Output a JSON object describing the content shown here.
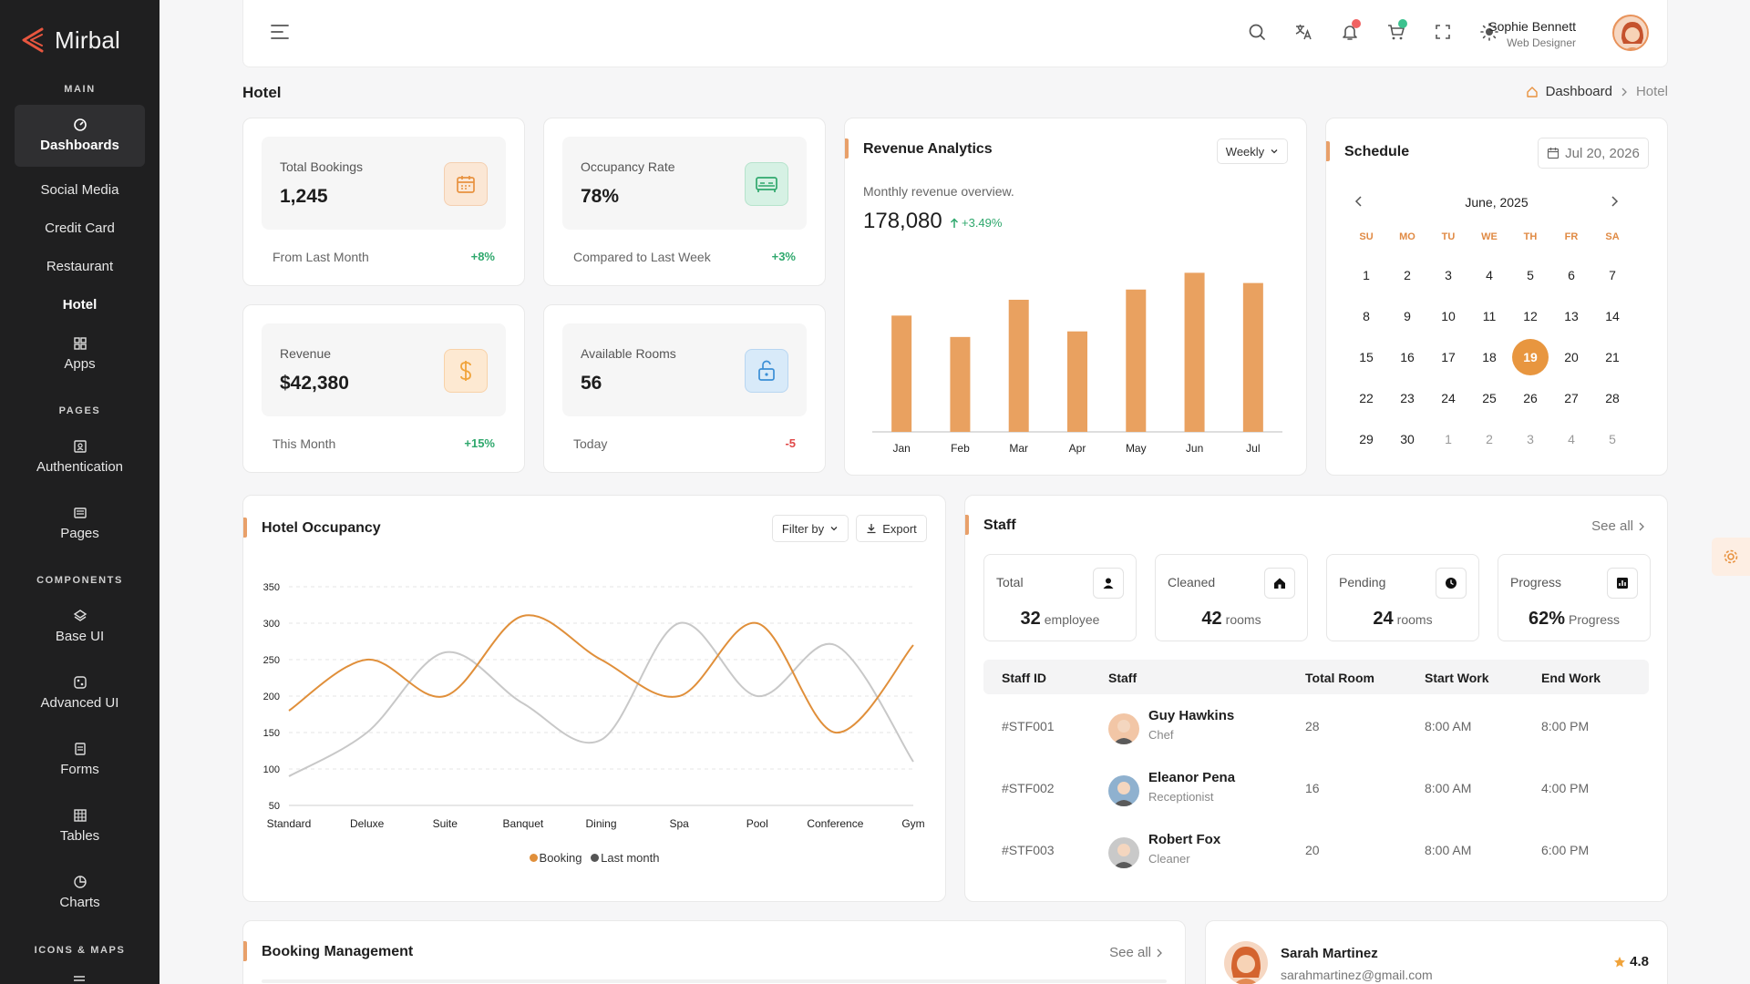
{
  "app": {
    "name": "Mirbal"
  },
  "sidebar": {
    "sections": {
      "main": "MAIN",
      "pages": "PAGES",
      "components": "COMPONENTS",
      "icons_maps": "ICONS & MAPS"
    },
    "items": [
      {
        "label": "Dashboards",
        "icon": "gauge-icon"
      },
      {
        "label": "Social Media"
      },
      {
        "label": "Credit Card"
      },
      {
        "label": "Restaurant"
      },
      {
        "label": "Hotel"
      },
      {
        "label": "Apps",
        "icon": "grid-icon"
      },
      {
        "label": "Authentication",
        "icon": "id-card-icon"
      },
      {
        "label": "Pages",
        "icon": "pages-icon"
      },
      {
        "label": "Base UI",
        "icon": "layers-icon"
      },
      {
        "label": "Advanced UI",
        "icon": "palette-icon"
      },
      {
        "label": "Forms",
        "icon": "form-icon"
      },
      {
        "label": "Tables",
        "icon": "table-icon"
      },
      {
        "label": "Charts",
        "icon": "pie-icon"
      }
    ]
  },
  "header": {
    "user_name": "Sophie Bennett",
    "user_role": "Web Designer",
    "colors": {
      "notif_dot": "#f06262",
      "cart_dot": "#3cc28f"
    }
  },
  "page": {
    "title": "Hotel"
  },
  "breadcrumb": {
    "home": "Dashboard",
    "current": "Hotel"
  },
  "stats": [
    {
      "label": "Total Bookings",
      "value": "1,245",
      "foot": "From Last Month",
      "change": "+8%",
      "icon": "calendar-icon",
      "color": "#e8923f",
      "bg": "#fbe7d5"
    },
    {
      "label": "Occupancy Rate",
      "value": "78%",
      "foot": "Compared to Last Week",
      "change": "+3%",
      "icon": "bed-icon",
      "color": "#2fa86d",
      "bg": "#d6f1e4"
    },
    {
      "label": "Revenue",
      "value": "$42,380",
      "foot": "This Month",
      "change": "+15%",
      "icon": "dollar-icon",
      "color": "#f0a33a",
      "bg": "#fde9d2"
    },
    {
      "label": "Available Rooms",
      "value": "56",
      "foot": "Today",
      "change": "-5",
      "icon": "unlock-icon",
      "color": "#3b8fd6",
      "bg": "#d8eaf9"
    }
  ],
  "revenue": {
    "title": "Revenue Analytics",
    "period": "Weekly",
    "subtitle": "Monthly revenue overview.",
    "total": "178,080",
    "change": "+3.49%"
  },
  "schedule": {
    "title": "Schedule",
    "date_button": "Jul 20, 2026",
    "month_label": "June, 2025",
    "dow": [
      "SU",
      "MO",
      "TU",
      "WE",
      "TH",
      "FR",
      "SA"
    ],
    "weeks": [
      [
        "1",
        "2",
        "3",
        "4",
        "5",
        "6",
        "7"
      ],
      [
        "8",
        "9",
        "10",
        "11",
        "12",
        "13",
        "14"
      ],
      [
        "15",
        "16",
        "17",
        "18",
        "19",
        "20",
        "21"
      ],
      [
        "22",
        "23",
        "24",
        "25",
        "26",
        "27",
        "28"
      ],
      [
        "29",
        "30",
        "1",
        "2",
        "3",
        "4",
        "5"
      ]
    ],
    "selected": "19"
  },
  "occupancy": {
    "title": "Hotel Occupancy",
    "filter": "Filter by",
    "export": "Export",
    "legend": [
      "Booking",
      "Last month"
    ]
  },
  "staff": {
    "title": "Staff",
    "see_all": "See all",
    "summary": [
      {
        "label": "Total",
        "value": "32",
        "unit": "employee",
        "icon": "user-icon"
      },
      {
        "label": "Cleaned",
        "value": "42",
        "unit": "rooms",
        "icon": "home-icon"
      },
      {
        "label": "Pending",
        "value": "24",
        "unit": "rooms",
        "icon": "clock-icon"
      },
      {
        "label": "Progress",
        "value": "62%",
        "unit": "Progress",
        "icon": "chart-icon"
      }
    ],
    "columns": [
      "Staff ID",
      "Staff",
      "Total Room",
      "Start Work",
      "End Work"
    ],
    "rows": [
      {
        "id": "#STF001",
        "name": "Guy Hawkins",
        "role": "Chef",
        "rooms": "28",
        "start": "8:00 AM",
        "end": "8:00 PM"
      },
      {
        "id": "#STF002",
        "name": "Eleanor Pena",
        "role": "Receptionist",
        "rooms": "16",
        "start": "8:00 AM",
        "end": "4:00 PM"
      },
      {
        "id": "#STF003",
        "name": "Robert Fox",
        "role": "Cleaner",
        "rooms": "20",
        "start": "8:00 AM",
        "end": "6:00 PM"
      }
    ]
  },
  "booking": {
    "title": "Booking Management",
    "see_all": "See all"
  },
  "review": {
    "name": "Sarah Martinez",
    "email": "sarahmartinez@gmail.com",
    "rating": "4.8"
  },
  "chart_data": [
    {
      "type": "bar",
      "categories": [
        "Jan",
        "Feb",
        "Mar",
        "Apr",
        "May",
        "Jun",
        "Jul"
      ],
      "values": [
        125,
        102,
        142,
        108,
        153,
        171,
        160
      ],
      "ylim": [
        0,
        190
      ],
      "color": "#e9a160",
      "grid": false
    },
    {
      "type": "line",
      "categories": [
        "Standard",
        "Deluxe",
        "Suite",
        "Banquet",
        "Dining",
        "Spa",
        "Pool",
        "Conference",
        "Gym"
      ],
      "yticks": [
        50,
        100,
        150,
        200,
        250,
        300,
        350
      ],
      "ylim": [
        50,
        350
      ],
      "series": [
        {
          "name": "Booking",
          "color": "#e08f3a",
          "values": [
            180,
            250,
            200,
            310,
            250,
            200,
            300,
            150,
            270
          ]
        },
        {
          "name": "Last month",
          "color": "#c8c8c8",
          "values": [
            90,
            150,
            260,
            190,
            140,
            300,
            200,
            270,
            110
          ]
        }
      ],
      "legend": "bottom",
      "grid": true
    }
  ]
}
